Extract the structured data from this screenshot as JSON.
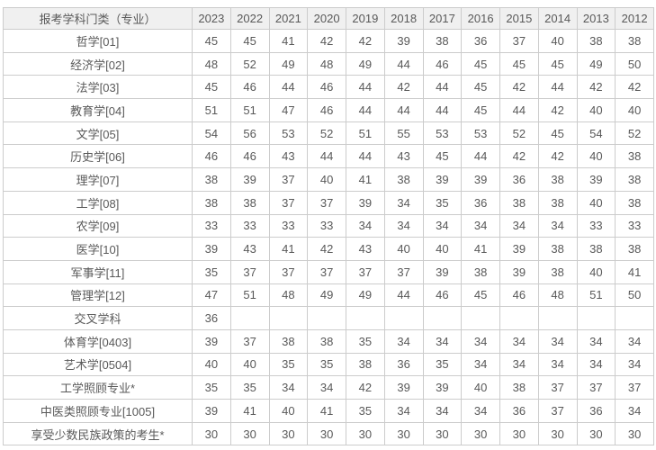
{
  "colors": {
    "text": "#595959",
    "border": "#cccccc",
    "outer_border": "#bcbcbc",
    "header_background": "#f0f0f0",
    "row_background": "#ffffff"
  },
  "chart_data": {
    "type": "table",
    "title": "",
    "columns": [
      "报考学科门类（专业）",
      "2023",
      "2022",
      "2021",
      "2020",
      "2019",
      "2018",
      "2017",
      "2016",
      "2015",
      "2014",
      "2013",
      "2012"
    ],
    "rows": [
      {
        "label": "哲学[01]",
        "values": [
          45,
          45,
          41,
          42,
          42,
          39,
          38,
          36,
          37,
          40,
          38,
          38
        ]
      },
      {
        "label": "经济学[02]",
        "values": [
          48,
          52,
          49,
          48,
          49,
          44,
          46,
          45,
          45,
          45,
          49,
          50
        ]
      },
      {
        "label": "法学[03]",
        "values": [
          45,
          46,
          44,
          46,
          44,
          42,
          44,
          45,
          42,
          44,
          42,
          42
        ]
      },
      {
        "label": "教育学[04]",
        "values": [
          51,
          51,
          47,
          46,
          44,
          44,
          44,
          45,
          44,
          42,
          40,
          40
        ]
      },
      {
        "label": "文学[05]",
        "values": [
          54,
          56,
          53,
          52,
          51,
          55,
          53,
          53,
          52,
          45,
          54,
          52
        ]
      },
      {
        "label": "历史学[06]",
        "values": [
          46,
          46,
          43,
          44,
          44,
          43,
          45,
          44,
          42,
          42,
          40,
          38
        ]
      },
      {
        "label": "理学[07]",
        "values": [
          38,
          39,
          37,
          40,
          41,
          38,
          39,
          39,
          36,
          38,
          39,
          38
        ]
      },
      {
        "label": "工学[08]",
        "values": [
          38,
          38,
          37,
          37,
          39,
          34,
          35,
          36,
          38,
          38,
          40,
          38
        ]
      },
      {
        "label": "农学[09]",
        "values": [
          33,
          33,
          33,
          33,
          34,
          34,
          34,
          34,
          34,
          34,
          33,
          33
        ]
      },
      {
        "label": "医学[10]",
        "values": [
          39,
          43,
          41,
          42,
          43,
          40,
          40,
          41,
          39,
          38,
          38,
          38
        ]
      },
      {
        "label": "军事学[11]",
        "values": [
          35,
          37,
          37,
          37,
          37,
          37,
          39,
          38,
          39,
          38,
          40,
          41
        ]
      },
      {
        "label": "管理学[12]",
        "values": [
          47,
          51,
          48,
          49,
          49,
          44,
          46,
          45,
          46,
          48,
          51,
          50
        ]
      },
      {
        "label": "交叉学科",
        "values": [
          36,
          null,
          null,
          null,
          null,
          null,
          null,
          null,
          null,
          null,
          null,
          null
        ]
      },
      {
        "label": "体育学[0403]",
        "values": [
          39,
          37,
          38,
          38,
          35,
          34,
          34,
          34,
          34,
          34,
          34,
          34
        ]
      },
      {
        "label": "艺术学[0504]",
        "values": [
          40,
          40,
          35,
          35,
          38,
          36,
          35,
          34,
          34,
          34,
          34,
          34
        ]
      },
      {
        "label": "工学照顾专业*",
        "values": [
          35,
          35,
          34,
          34,
          42,
          39,
          39,
          40,
          38,
          37,
          37,
          37
        ]
      },
      {
        "label": "中医类照顾专业[1005]",
        "values": [
          39,
          41,
          40,
          41,
          35,
          34,
          34,
          34,
          36,
          37,
          36,
          34
        ]
      },
      {
        "label": "享受少数民族政策的考生*",
        "values": [
          30,
          30,
          30,
          30,
          30,
          30,
          30,
          30,
          30,
          30,
          30,
          30
        ]
      }
    ]
  }
}
